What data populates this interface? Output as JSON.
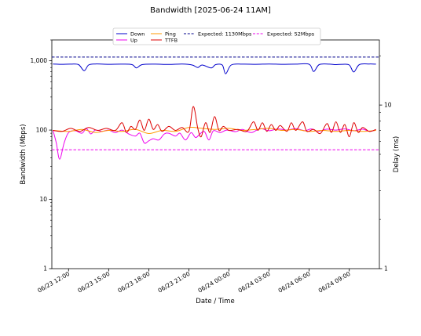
{
  "chart_data": {
    "type": "line",
    "title": "Bandwidth [2025-06-24 11AM]",
    "xlabel": "Date / Time",
    "ylabel": "Bandwidth (Mbps)",
    "y2label": "Delay (ms)",
    "yscale": "log",
    "ylim": [
      1,
      2000
    ],
    "y2scale": "log",
    "y2lim": [
      1,
      25
    ],
    "xlim": [
      "2025-06-23 10:45",
      "2025-06-24 11:15"
    ],
    "xticks": [
      {
        "t": "2025-06-23 12:00",
        "label": "06/23 12:00"
      },
      {
        "t": "2025-06-23 15:00",
        "label": "06/23 15:00"
      },
      {
        "t": "2025-06-23 18:00",
        "label": "06/23 18:00"
      },
      {
        "t": "2025-06-23 21:00",
        "label": "06/23 21:00"
      },
      {
        "t": "2025-06-24 00:00",
        "label": "06/24 00:00"
      },
      {
        "t": "2025-06-24 03:00",
        "label": "06/24 03:00"
      },
      {
        "t": "2025-06-24 06:00",
        "label": "06/24 06:00"
      },
      {
        "t": "2025-06-24 09:00",
        "label": "06/24 09:00"
      }
    ],
    "yticks": [
      {
        "v": 1,
        "label": "1"
      },
      {
        "v": 10,
        "label": "10"
      },
      {
        "v": 100,
        "label": "100"
      },
      {
        "v": 1000,
        "label": "1,000"
      }
    ],
    "y2ticks": [
      {
        "v": 1,
        "label": "1"
      },
      {
        "v": 10,
        "label": "10"
      }
    ],
    "legend": {
      "placement": "top-center",
      "columns": 4
    },
    "series": [
      {
        "name": "Down",
        "color": "#0000cc",
        "axis": "left",
        "style": "solid",
        "points": [
          [
            "2025-06-23 10:50",
            900
          ],
          [
            "2025-06-23 11:30",
            890
          ],
          [
            "2025-06-23 12:10",
            895
          ],
          [
            "2025-06-23 12:45",
            880
          ],
          [
            "2025-06-23 13:10",
            720
          ],
          [
            "2025-06-23 13:30",
            870
          ],
          [
            "2025-06-23 14:00",
            900
          ],
          [
            "2025-06-23 15:00",
            890
          ],
          [
            "2025-06-23 16:00",
            895
          ],
          [
            "2025-06-23 16:45",
            880
          ],
          [
            "2025-06-23 17:05",
            790
          ],
          [
            "2025-06-23 17:30",
            880
          ],
          [
            "2025-06-23 18:30",
            895
          ],
          [
            "2025-06-23 19:30",
            885
          ],
          [
            "2025-06-23 20:30",
            900
          ],
          [
            "2025-06-23 21:15",
            870
          ],
          [
            "2025-06-23 21:40",
            800
          ],
          [
            "2025-06-23 22:00",
            870
          ],
          [
            "2025-06-23 22:40",
            790
          ],
          [
            "2025-06-23 23:00",
            880
          ],
          [
            "2025-06-23 23:30",
            870
          ],
          [
            "2025-06-23 23:45",
            650
          ],
          [
            "2025-06-24 00:10",
            870
          ],
          [
            "2025-06-24 01:00",
            895
          ],
          [
            "2025-06-24 02:00",
            890
          ],
          [
            "2025-06-24 03:00",
            900
          ],
          [
            "2025-06-24 04:00",
            890
          ],
          [
            "2025-06-24 05:00",
            895
          ],
          [
            "2025-06-24 06:00",
            890
          ],
          [
            "2025-06-24 06:20",
            700
          ],
          [
            "2025-06-24 06:45",
            880
          ],
          [
            "2025-06-24 07:30",
            895
          ],
          [
            "2025-06-24 08:00",
            880
          ],
          [
            "2025-06-24 08:30",
            890
          ],
          [
            "2025-06-24 09:00",
            870
          ],
          [
            "2025-06-24 09:20",
            690
          ],
          [
            "2025-06-24 09:45",
            880
          ],
          [
            "2025-06-24 10:30",
            900
          ],
          [
            "2025-06-24 11:00",
            895
          ]
        ]
      },
      {
        "name": "Up",
        "color": "#ee00ee",
        "axis": "left",
        "style": "solid",
        "points": [
          [
            "2025-06-23 10:50",
            100
          ],
          [
            "2025-06-23 11:05",
            65
          ],
          [
            "2025-06-23 11:20",
            38
          ],
          [
            "2025-06-23 11:40",
            65
          ],
          [
            "2025-06-23 12:00",
            92
          ],
          [
            "2025-06-23 12:30",
            98
          ],
          [
            "2025-06-23 13:00",
            90
          ],
          [
            "2025-06-23 13:20",
            105
          ],
          [
            "2025-06-23 13:40",
            88
          ],
          [
            "2025-06-23 14:00",
            100
          ],
          [
            "2025-06-23 14:30",
            96
          ],
          [
            "2025-06-23 15:00",
            100
          ],
          [
            "2025-06-23 15:30",
            92
          ],
          [
            "2025-06-23 16:00",
            100
          ],
          [
            "2025-06-23 16:30",
            88
          ],
          [
            "2025-06-23 17:00",
            82
          ],
          [
            "2025-06-23 17:20",
            90
          ],
          [
            "2025-06-23 17:40",
            65
          ],
          [
            "2025-06-23 18:00",
            70
          ],
          [
            "2025-06-23 18:20",
            75
          ],
          [
            "2025-06-23 18:45",
            72
          ],
          [
            "2025-06-23 19:10",
            88
          ],
          [
            "2025-06-23 19:30",
            90
          ],
          [
            "2025-06-23 20:00",
            82
          ],
          [
            "2025-06-23 20:20",
            90
          ],
          [
            "2025-06-23 20:45",
            72
          ],
          [
            "2025-06-23 21:10",
            92
          ],
          [
            "2025-06-23 21:30",
            78
          ],
          [
            "2025-06-23 21:50",
            88
          ],
          [
            "2025-06-23 22:10",
            95
          ],
          [
            "2025-06-23 22:30",
            72
          ],
          [
            "2025-06-23 22:50",
            98
          ],
          [
            "2025-06-23 23:20",
            92
          ],
          [
            "2025-06-23 23:50",
            100
          ],
          [
            "2025-06-24 00:30",
            95
          ],
          [
            "2025-06-24 01:00",
            102
          ],
          [
            "2025-06-24 01:40",
            92
          ],
          [
            "2025-06-24 02:20",
            105
          ],
          [
            "2025-06-24 03:00",
            98
          ],
          [
            "2025-06-24 03:40",
            104
          ],
          [
            "2025-06-24 04:20",
            100
          ],
          [
            "2025-06-24 05:00",
            105
          ],
          [
            "2025-06-24 05:40",
            98
          ],
          [
            "2025-06-24 06:10",
            104
          ],
          [
            "2025-06-24 06:40",
            96
          ],
          [
            "2025-06-24 07:20",
            103
          ],
          [
            "2025-06-24 08:00",
            100
          ],
          [
            "2025-06-24 08:40",
            104
          ],
          [
            "2025-06-24 09:20",
            98
          ],
          [
            "2025-06-24 10:00",
            103
          ],
          [
            "2025-06-24 10:30",
            96
          ],
          [
            "2025-06-24 11:00",
            100
          ]
        ]
      },
      {
        "name": "Ping",
        "color": "#ff9900",
        "axis": "right",
        "style": "solid",
        "points": [
          [
            "2025-06-23 10:50",
            7.0
          ],
          [
            "2025-06-23 12:00",
            6.9
          ],
          [
            "2025-06-23 13:00",
            7.1
          ],
          [
            "2025-06-23 14:00",
            6.8
          ],
          [
            "2025-06-23 15:00",
            7.0
          ],
          [
            "2025-06-23 16:00",
            6.9
          ],
          [
            "2025-06-23 17:00",
            7.1
          ],
          [
            "2025-06-23 18:00",
            6.7
          ],
          [
            "2025-06-23 19:00",
            7.0
          ],
          [
            "2025-06-23 20:00",
            6.9
          ],
          [
            "2025-06-23 21:00",
            7.3
          ],
          [
            "2025-06-23 22:00",
            7.2
          ],
          [
            "2025-06-23 23:00",
            7.1
          ],
          [
            "2025-06-24 00:00",
            7.2
          ],
          [
            "2025-06-24 01:00",
            7.0
          ],
          [
            "2025-06-24 02:00",
            7.1
          ],
          [
            "2025-06-24 03:00",
            7.2
          ],
          [
            "2025-06-24 04:00",
            7.0
          ],
          [
            "2025-06-24 05:00",
            7.1
          ],
          [
            "2025-06-24 06:00",
            6.9
          ],
          [
            "2025-06-24 07:00",
            7.0
          ],
          [
            "2025-06-24 08:00",
            6.9
          ],
          [
            "2025-06-24 09:00",
            7.0
          ],
          [
            "2025-06-24 10:00",
            6.9
          ],
          [
            "2025-06-24 11:00",
            7.0
          ]
        ]
      },
      {
        "name": "TTFB",
        "color": "#dd0000",
        "axis": "right",
        "style": "solid",
        "points": [
          [
            "2025-06-23 10:50",
            7.0
          ],
          [
            "2025-06-23 11:30",
            6.9
          ],
          [
            "2025-06-23 12:10",
            7.2
          ],
          [
            "2025-06-23 12:50",
            6.9
          ],
          [
            "2025-06-23 13:30",
            7.3
          ],
          [
            "2025-06-23 14:10",
            7.0
          ],
          [
            "2025-06-23 14:50",
            7.2
          ],
          [
            "2025-06-23 15:30",
            7.0
          ],
          [
            "2025-06-23 16:00",
            7.8
          ],
          [
            "2025-06-23 16:20",
            6.8
          ],
          [
            "2025-06-23 16:40",
            7.4
          ],
          [
            "2025-06-23 17:00",
            7.1
          ],
          [
            "2025-06-23 17:20",
            8.1
          ],
          [
            "2025-06-23 17:40",
            7.0
          ],
          [
            "2025-06-23 18:00",
            8.2
          ],
          [
            "2025-06-23 18:20",
            7.1
          ],
          [
            "2025-06-23 18:40",
            7.6
          ],
          [
            "2025-06-23 19:00",
            6.9
          ],
          [
            "2025-06-23 19:30",
            7.4
          ],
          [
            "2025-06-23 20:00",
            7.0
          ],
          [
            "2025-06-23 20:30",
            7.3
          ],
          [
            "2025-06-23 21:00",
            6.9
          ],
          [
            "2025-06-23 21:20",
            9.8
          ],
          [
            "2025-06-23 21:40",
            7.2
          ],
          [
            "2025-06-23 21:55",
            6.4
          ],
          [
            "2025-06-23 22:15",
            7.8
          ],
          [
            "2025-06-23 22:35",
            6.8
          ],
          [
            "2025-06-23 22:55",
            8.5
          ],
          [
            "2025-06-23 23:15",
            7.0
          ],
          [
            "2025-06-23 23:35",
            7.4
          ],
          [
            "2025-06-24 00:00",
            7.0
          ],
          [
            "2025-06-24 00:40",
            7.1
          ],
          [
            "2025-06-24 01:20",
            6.9
          ],
          [
            "2025-06-24 01:50",
            7.9
          ],
          [
            "2025-06-24 02:10",
            7.0
          ],
          [
            "2025-06-24 02:30",
            7.8
          ],
          [
            "2025-06-24 02:50",
            6.9
          ],
          [
            "2025-06-24 03:10",
            7.6
          ],
          [
            "2025-06-24 03:30",
            7.0
          ],
          [
            "2025-06-24 03:50",
            7.5
          ],
          [
            "2025-06-24 04:20",
            6.9
          ],
          [
            "2025-06-24 04:40",
            7.8
          ],
          [
            "2025-06-24 05:00",
            7.0
          ],
          [
            "2025-06-24 05:30",
            7.9
          ],
          [
            "2025-06-24 05:50",
            6.9
          ],
          [
            "2025-06-24 06:20",
            7.1
          ],
          [
            "2025-06-24 06:50",
            6.7
          ],
          [
            "2025-06-24 07:20",
            7.7
          ],
          [
            "2025-06-24 07:40",
            6.8
          ],
          [
            "2025-06-24 08:00",
            7.9
          ],
          [
            "2025-06-24 08:20",
            6.8
          ],
          [
            "2025-06-24 08:40",
            7.6
          ],
          [
            "2025-06-24 09:00",
            6.4
          ],
          [
            "2025-06-24 09:20",
            7.8
          ],
          [
            "2025-06-24 09:40",
            6.8
          ],
          [
            "2025-06-24 10:00",
            7.3
          ],
          [
            "2025-06-24 10:30",
            6.9
          ],
          [
            "2025-06-24 11:00",
            7.1
          ]
        ]
      },
      {
        "name": "Expected: 1130Mbps",
        "color": "#00008b",
        "axis": "left",
        "style": "dashed",
        "value": 1130
      },
      {
        "name": "Expected: 52Mbps",
        "color": "#ee00ee",
        "axis": "left",
        "style": "dashed",
        "value": 52
      }
    ]
  }
}
